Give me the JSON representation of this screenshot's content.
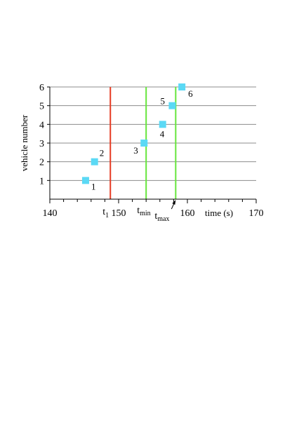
{
  "chart_data": {
    "type": "scatter",
    "title": "",
    "xlabel": "time (s)",
    "ylabel": "vehicle number",
    "xlim": [
      140,
      170
    ],
    "ylim": [
      0,
      6
    ],
    "x_ticks": [
      140,
      150,
      160,
      170
    ],
    "x_tick_labels": [
      "140",
      "150",
      "160",
      "170"
    ],
    "y_ticks": [
      1,
      2,
      3,
      4,
      5,
      6
    ],
    "y_tick_labels": [
      "1",
      "2",
      "3",
      "4",
      "5",
      "6"
    ],
    "grid": "horizontal",
    "legend": "none",
    "series": [
      {
        "color": "#5bd9f5",
        "marker": "square",
        "points": [
          {
            "x": 145.2,
            "y": 1,
            "label": "1"
          },
          {
            "x": 146.5,
            "y": 2,
            "label": "2"
          },
          {
            "x": 153.7,
            "y": 3,
            "label": "3"
          },
          {
            "x": 156.4,
            "y": 4,
            "label": "4"
          },
          {
            "x": 157.8,
            "y": 5,
            "label": "5"
          },
          {
            "x": 159.2,
            "y": 6,
            "label": "6"
          }
        ]
      }
    ],
    "vertical_lines": [
      {
        "x": 148.8,
        "color": "#e63a22",
        "label": "t",
        "sub": "1"
      },
      {
        "x": 154.0,
        "color": "#66e63c",
        "label": "t",
        "sub": "min"
      },
      {
        "x": 158.3,
        "color": "#66e63c",
        "label": "t",
        "sub": "max"
      }
    ]
  }
}
